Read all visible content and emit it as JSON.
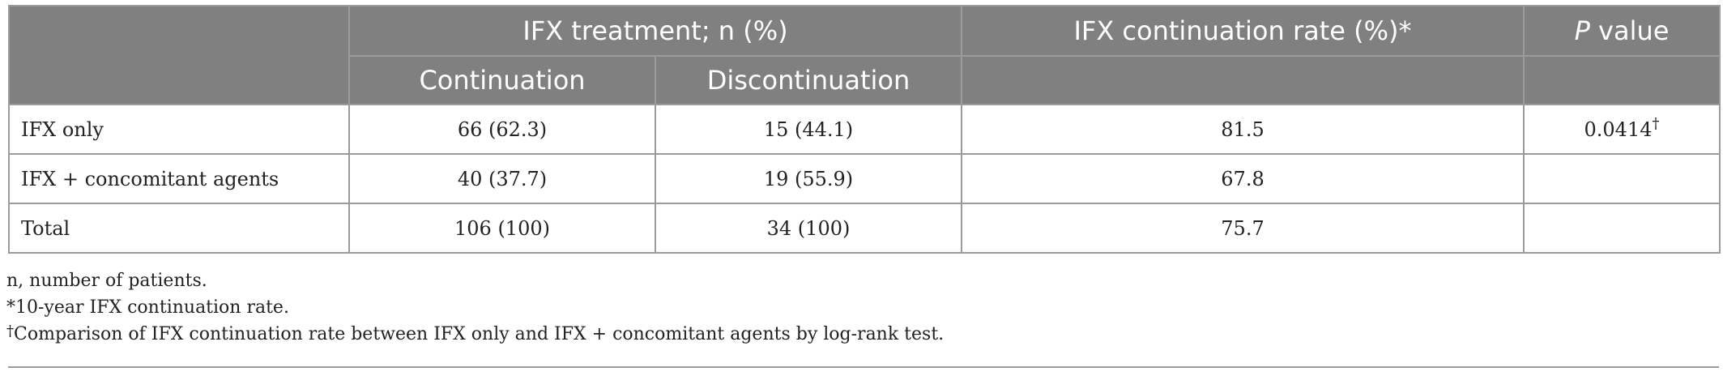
{
  "table": {
    "header": {
      "group_treatment": "IFX treatment; n (%)",
      "rate": "IFX continuation rate (%)*",
      "p_italic": "P",
      "p_rest": " value",
      "continuation": "Continuation",
      "discontinuation": "Discontinuation"
    },
    "rows": [
      {
        "label": "IFX only",
        "continuation": "66 (62.3)",
        "discontinuation": "15 (44.1)",
        "rate": "81.5",
        "p": "0.0414",
        "p_mark": "†"
      },
      {
        "label": "IFX + concomitant agents",
        "continuation": "40 (37.7)",
        "discontinuation": "19 (55.9)",
        "rate": "67.8",
        "p": "",
        "p_mark": ""
      },
      {
        "label": "Total",
        "continuation": "106 (100)",
        "discontinuation": "34 (100)",
        "rate": "75.7",
        "p": "",
        "p_mark": ""
      }
    ]
  },
  "footnotes": {
    "n": "n, number of patients.",
    "star": "*10-year IFX continuation rate.",
    "dagger_mark": "†",
    "dagger": "Comparison of IFX continuation rate between IFX only and IFX + concomitant agents by log-rank test."
  },
  "colors": {
    "header_bg": "#808080",
    "header_text": "#ffffff",
    "border": "#9b9b9b",
    "body_text": "#222222"
  }
}
